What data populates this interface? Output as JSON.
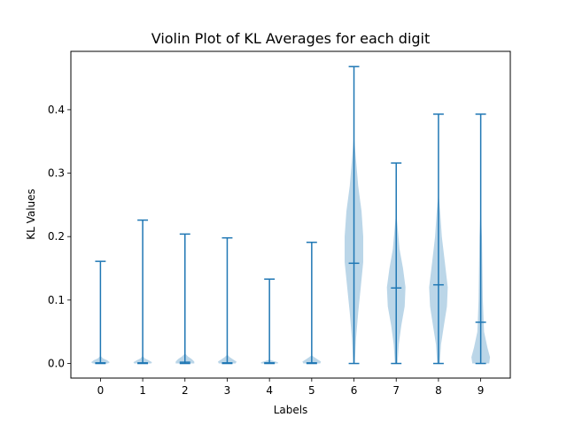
{
  "chart_data": {
    "type": "violin",
    "title": "Violin Plot of KL Averages for each digit",
    "xlabel": "Labels",
    "ylabel": "KL Values",
    "categories": [
      "0",
      "1",
      "2",
      "3",
      "4",
      "5",
      "6",
      "7",
      "8",
      "9"
    ],
    "ylim": [
      -0.023,
      0.492
    ],
    "yticks": [
      0.0,
      0.1,
      0.2,
      0.3,
      0.4
    ],
    "ytick_labels": [
      "0.0",
      "0.1",
      "0.2",
      "0.3",
      "0.4"
    ],
    "grid": false,
    "colors": {
      "body": "#1f77b4",
      "line": "#1f77b4"
    },
    "violins": [
      {
        "label": "0",
        "min": 0.0,
        "median": 0.001,
        "max": 0.161,
        "density": [
          [
            0.0,
            0.18
          ],
          [
            0.002,
            0.22
          ],
          [
            0.005,
            0.16
          ],
          [
            0.008,
            0.06
          ],
          [
            0.012,
            0.0
          ]
        ]
      },
      {
        "label": "1",
        "min": 0.0,
        "median": 0.001,
        "max": 0.226,
        "density": [
          [
            0.0,
            0.2
          ],
          [
            0.002,
            0.22
          ],
          [
            0.005,
            0.14
          ],
          [
            0.008,
            0.05
          ],
          [
            0.012,
            0.0
          ]
        ]
      },
      {
        "label": "2",
        "min": 0.0,
        "median": 0.002,
        "max": 0.204,
        "density": [
          [
            0.0,
            0.22
          ],
          [
            0.003,
            0.22
          ],
          [
            0.007,
            0.16
          ],
          [
            0.011,
            0.07
          ],
          [
            0.016,
            0.0
          ]
        ]
      },
      {
        "label": "3",
        "min": 0.0,
        "median": 0.001,
        "max": 0.198,
        "density": [
          [
            0.0,
            0.2
          ],
          [
            0.003,
            0.22
          ],
          [
            0.006,
            0.15
          ],
          [
            0.01,
            0.06
          ],
          [
            0.014,
            0.0
          ]
        ]
      },
      {
        "label": "4",
        "min": 0.0,
        "median": 0.001,
        "max": 0.133,
        "density": [
          [
            0.0,
            0.2
          ],
          [
            0.002,
            0.2
          ],
          [
            0.004,
            0.1
          ],
          [
            0.006,
            0.0
          ]
        ]
      },
      {
        "label": "5",
        "min": 0.0,
        "median": 0.001,
        "max": 0.191,
        "density": [
          [
            0.0,
            0.2
          ],
          [
            0.003,
            0.22
          ],
          [
            0.006,
            0.15
          ],
          [
            0.01,
            0.06
          ],
          [
            0.013,
            0.0
          ]
        ]
      },
      {
        "label": "6",
        "min": 0.0,
        "median": 0.158,
        "max": 0.468,
        "density": [
          [
            0.0,
            0.02
          ],
          [
            0.04,
            0.05
          ],
          [
            0.08,
            0.1
          ],
          [
            0.12,
            0.16
          ],
          [
            0.16,
            0.22
          ],
          [
            0.2,
            0.22
          ],
          [
            0.24,
            0.18
          ],
          [
            0.28,
            0.1
          ],
          [
            0.32,
            0.05
          ],
          [
            0.36,
            0.0
          ]
        ]
      },
      {
        "label": "7",
        "min": 0.0,
        "median": 0.119,
        "max": 0.316,
        "density": [
          [
            0.0,
            0.03
          ],
          [
            0.03,
            0.06
          ],
          [
            0.06,
            0.12
          ],
          [
            0.09,
            0.2
          ],
          [
            0.12,
            0.22
          ],
          [
            0.15,
            0.16
          ],
          [
            0.18,
            0.08
          ],
          [
            0.21,
            0.04
          ],
          [
            0.24,
            0.0
          ]
        ]
      },
      {
        "label": "8",
        "min": 0.0,
        "median": 0.124,
        "max": 0.393,
        "density": [
          [
            0.0,
            0.03
          ],
          [
            0.03,
            0.06
          ],
          [
            0.06,
            0.13
          ],
          [
            0.09,
            0.2
          ],
          [
            0.12,
            0.22
          ],
          [
            0.16,
            0.15
          ],
          [
            0.2,
            0.08
          ],
          [
            0.24,
            0.04
          ],
          [
            0.27,
            0.0
          ]
        ]
      },
      {
        "label": "9",
        "min": 0.0,
        "median": 0.065,
        "max": 0.393,
        "density": [
          [
            0.0,
            0.2
          ],
          [
            0.01,
            0.22
          ],
          [
            0.025,
            0.16
          ],
          [
            0.05,
            0.08
          ],
          [
            0.1,
            0.05
          ],
          [
            0.15,
            0.04
          ],
          [
            0.2,
            0.03
          ],
          [
            0.25,
            0.0
          ]
        ]
      }
    ]
  }
}
